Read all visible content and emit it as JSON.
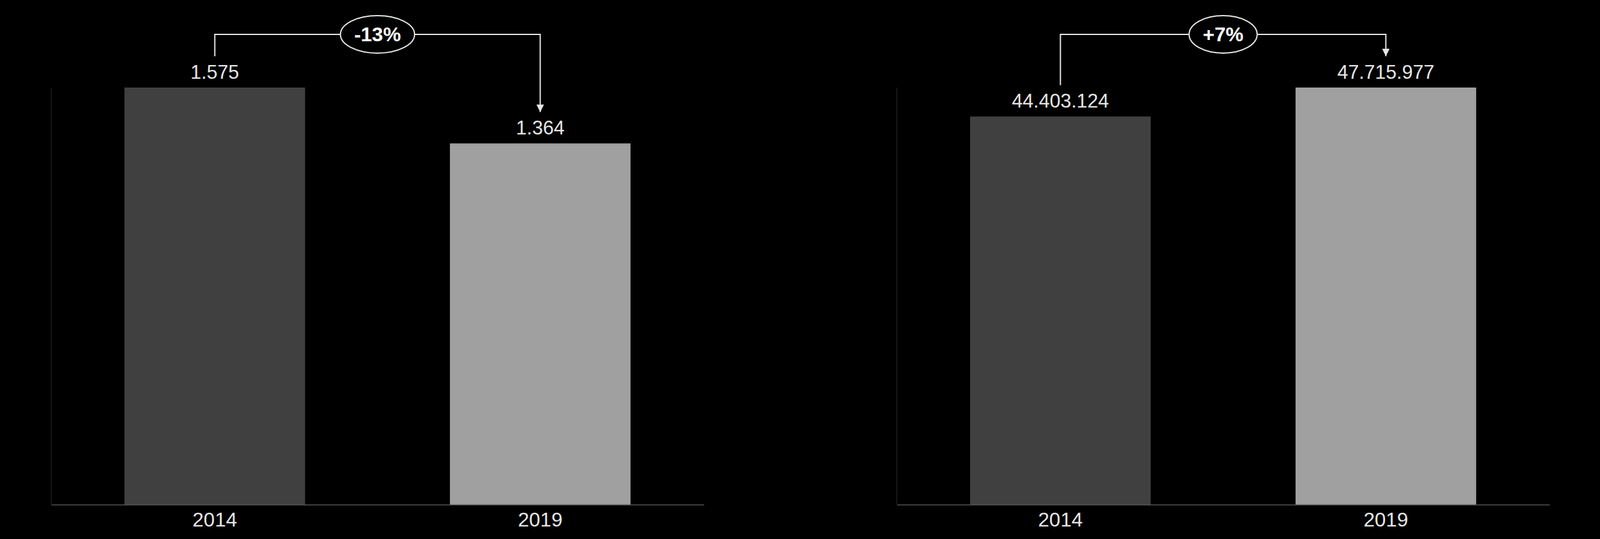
{
  "chart_data": [
    {
      "type": "bar",
      "categories": [
        "2014",
        "2019"
      ],
      "values": [
        1575,
        1364
      ],
      "value_labels": [
        "1.575",
        "1.364"
      ],
      "colors": [
        "#404040",
        "#a0a0a0"
      ],
      "ylim": [
        0,
        1575
      ],
      "data_labels": true,
      "tick_labels": "x",
      "annotations": [
        "-13%"
      ]
    },
    {
      "type": "bar",
      "categories": [
        "2014",
        "2019"
      ],
      "values": [
        44403124,
        47715977
      ],
      "value_labels": [
        "44.403.124",
        "47.715.977"
      ],
      "colors": [
        "#404040",
        "#a0a0a0"
      ],
      "ylim": [
        0,
        47715977
      ],
      "data_labels": true,
      "tick_labels": "x",
      "annotations": [
        "+7%"
      ]
    }
  ]
}
